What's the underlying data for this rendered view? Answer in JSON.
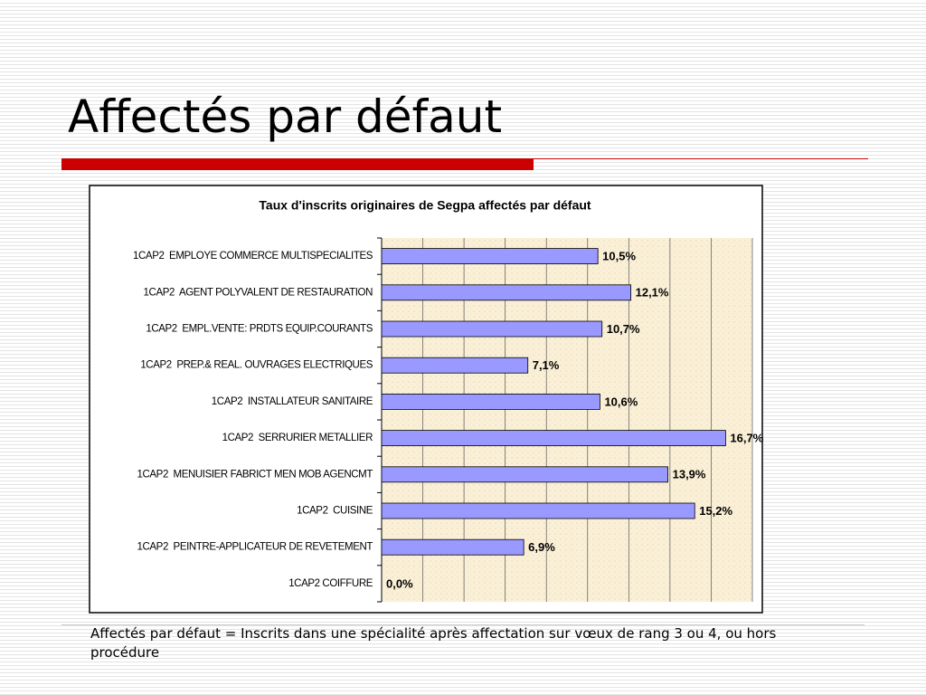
{
  "slide_title": "Affectés par défaut",
  "chart_data": {
    "type": "bar",
    "orientation": "horizontal",
    "title": "Taux d'inscrits originaires de Segpa affectés par défaut",
    "categories": [
      "1CAP2  EMPLOYE COMMERCE MULTISPECIALITES",
      "1CAP2  AGENT POLYVALENT DE RESTAURATION",
      "1CAP2  EMPL.VENTE: PRDTS EQUIP.COURANTS",
      "1CAP2  PREP.& REAL. OUVRAGES ELECTRIQUES",
      "1CAP2  INSTALLATEUR SANITAIRE",
      "1CAP2  SERRURIER METALLIER",
      "1CAP2  MENUISIER FABRICT MEN MOB AGENCMT",
      "1CAP2  CUISINE",
      "1CAP2  PEINTRE-APPLICATEUR DE REVETEMENT",
      "1CAP2 COIFFURE"
    ],
    "values": [
      10.5,
      12.1,
      10.7,
      7.1,
      10.6,
      16.7,
      13.9,
      15.2,
      6.9,
      0.0
    ],
    "value_labels": [
      "10,5%",
      "12,1%",
      "10,7%",
      "7,1%",
      "10,6%",
      "16,7%",
      "13,9%",
      "15,2%",
      "6,9%",
      "0,0%"
    ],
    "color": "#9999ff",
    "xlim": [
      0,
      18
    ],
    "xticks": [
      0,
      2,
      4,
      6,
      8,
      10,
      12,
      14,
      16,
      18
    ],
    "grid": true
  },
  "footnote": "Affectés par défaut = Inscrits dans une spécialité après affectation sur vœux de rang 3 ou 4, ou hors procédure"
}
